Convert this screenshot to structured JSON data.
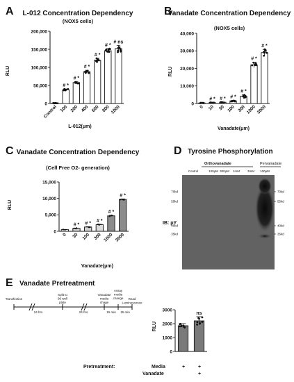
{
  "panel_a": {
    "letter": "A",
    "chart_data": {
      "type": "bar",
      "title": "L-012 Concentration Dependency",
      "subtitle": "(NOX5 cells)",
      "xlabel": "L-012(μm)",
      "ylabel": "RLU",
      "ylim": [
        0,
        200000
      ],
      "yticks": [
        "0",
        "50,000",
        "100,000",
        "150,000",
        "200,000"
      ],
      "categories": [
        "Control",
        "100",
        "200",
        "400",
        "600",
        "800",
        "1000"
      ],
      "values": [
        1000,
        38000,
        58000,
        88000,
        120000,
        146000,
        152000
      ],
      "errors": [
        500,
        2000,
        3000,
        4000,
        5000,
        6000,
        9000
      ],
      "bar_colors": [
        "#ffffff",
        "#ffffff",
        "#ffffff",
        "#ffffff",
        "#ffffff",
        "#ffffff",
        "#ffffff"
      ],
      "annotations": [
        "",
        "# *",
        "# *",
        "# *",
        "# *",
        "# *",
        "# ns"
      ]
    }
  },
  "panel_b": {
    "letter": "B",
    "chart_data": {
      "type": "bar",
      "title": "Vanadate Concentration Dependency",
      "subtitle": "(NOX5 cells)",
      "xlabel": "Vanadate(μm)",
      "ylabel": "RLU",
      "ylim": [
        0,
        40000
      ],
      "yticks": [
        "0",
        "10,000",
        "20,000",
        "30,000",
        "40,000"
      ],
      "categories": [
        "0",
        "10",
        "30",
        "100",
        "300",
        "1000",
        "3000"
      ],
      "values": [
        300,
        500,
        700,
        1500,
        4200,
        22000,
        29000
      ],
      "errors": [
        100,
        100,
        150,
        300,
        800,
        1500,
        1800
      ],
      "bar_colors": [
        "#ffffff",
        "#ffffff",
        "#ffffff",
        "#ffffff",
        "#ffffff",
        "#ffffff",
        "#ffffff"
      ],
      "annotations": [
        "",
        "# *",
        "# *",
        "# *",
        "# *",
        "# *",
        "# *"
      ]
    }
  },
  "panel_c": {
    "letter": "C",
    "chart_data": {
      "type": "bar",
      "title": "Vanadate Concentration Dependency",
      "subtitle": "(Cell Free O2- generation)",
      "xlabel": "Vanadate(μm)",
      "ylabel": "RLU",
      "ylim": [
        0,
        15000
      ],
      "yticks": [
        "0",
        "5,000",
        "10,000",
        "15,000"
      ],
      "categories": [
        "0",
        "30",
        "100",
        "300",
        "1000",
        "3000"
      ],
      "values": [
        500,
        900,
        1300,
        2000,
        4700,
        9700
      ],
      "errors": [
        60,
        80,
        100,
        150,
        150,
        150
      ],
      "bar_colors": [
        "#ffffff",
        "#d2d2d2",
        "#d2d2d2",
        "#dcdcdc",
        "#8c8c8c",
        "#8c8c8c"
      ],
      "annotations": [
        "",
        "# *",
        "# *",
        "# *",
        "# *",
        "# *"
      ]
    }
  },
  "panel_d": {
    "letter": "D",
    "title": "Tyrosine Phosphorylation",
    "ortho_label": "Orthovanadate",
    "perv_label": "Pervanadate",
    "lanes": [
      "Control",
      "100μM",
      "300μM",
      "1mM",
      "3mM",
      "100μM"
    ],
    "ib_label": "IB: pY",
    "markers": [
      "70kd",
      "55kd",
      "40kd",
      "35kd"
    ]
  },
  "panel_e": {
    "letter": "E",
    "title": "Vanadate Pretreatment",
    "timeline_steps": [
      "Transfection",
      "Split to 96 well plate",
      "Vanadate media chage",
      "Assay media change",
      "Read Luminescence"
    ],
    "timeline_intervals": [
      "24 hrs",
      "24 hrs",
      "15 min",
      "15 min"
    ],
    "pretreatment_label": "Pretreatment:",
    "row_labels": [
      "Media",
      "Vanadate"
    ],
    "row_signs": [
      [
        "+",
        "+"
      ],
      [
        "",
        "+"
      ]
    ],
    "chart_data": {
      "type": "bar",
      "xlabel": "",
      "ylabel": "RLU",
      "ylim": [
        0,
        3000
      ],
      "yticks": [
        "0",
        "1000",
        "2000",
        "3000"
      ],
      "categories": [
        "Media",
        "Media + Vanadate"
      ],
      "values": [
        1850,
        2200
      ],
      "errors": [
        150,
        300
      ],
      "bar_colors": [
        "#7a7a7a",
        "#7a7a7a"
      ],
      "annotations": [
        "",
        "ns"
      ]
    }
  }
}
